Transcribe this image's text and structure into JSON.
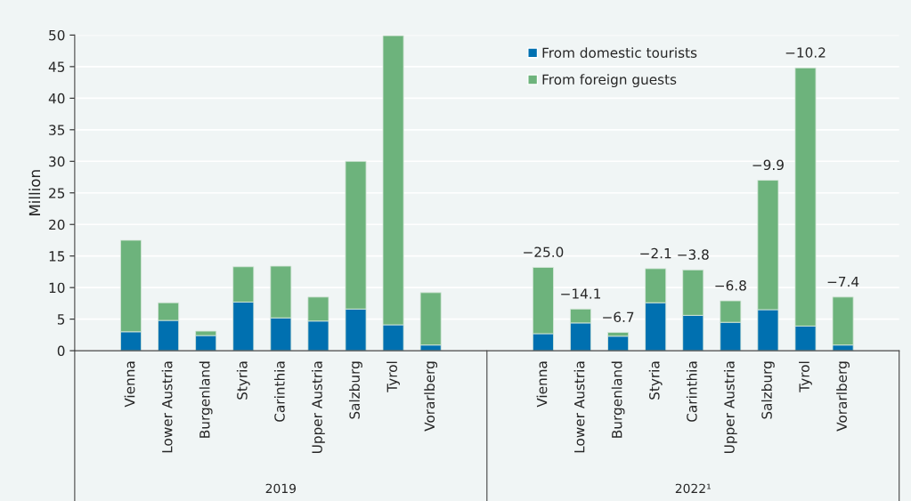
{
  "chart_data": {
    "type": "bar",
    "stacked": true,
    "ylabel": "Million",
    "categories": [
      null,
      "Vienna",
      "Lower Austria",
      "Burgenland",
      "Styria",
      "Carinthia",
      "Upper Austria",
      "Salzburg",
      "Tyrol",
      "Vorarlberg",
      null,
      null,
      "Vienna",
      "Lower Austria",
      "Burgenland",
      "Styria",
      "Carinthia",
      "Upper Austria",
      "Salzburg",
      "Tyrol",
      "Vorarlberg",
      null
    ],
    "series": [
      {
        "name": "From domestic tourists",
        "color": "#0070b0",
        "values": [
          null,
          3.0,
          4.8,
          2.4,
          7.7,
          5.2,
          4.7,
          6.6,
          4.1,
          0.9,
          null,
          null,
          2.7,
          4.4,
          2.3,
          7.6,
          5.6,
          4.5,
          6.5,
          3.9,
          0.9,
          null
        ]
      },
      {
        "name": "From foreign guests",
        "color": "#6db37c",
        "values": [
          null,
          14.5,
          2.8,
          0.7,
          5.6,
          8.2,
          3.8,
          23.4,
          45.8,
          8.3,
          null,
          null,
          10.5,
          2.2,
          0.6,
          5.4,
          7.2,
          3.4,
          20.5,
          40.9,
          7.6,
          null
        ]
      }
    ],
    "annotations": [
      "2019",
      "2022¹",
      "−25.0",
      "−14.1",
      "−6.7",
      "−2.1",
      "−3.8",
      "−6.8",
      "−9.9",
      "−10.2",
      "−7.4"
    ],
    "ylim": [
      0,
      50
    ],
    "yticks": [
      0,
      5,
      10,
      15,
      20,
      25,
      30,
      35,
      40,
      45,
      50
    ],
    "grid": "y",
    "legend": "top right"
  }
}
